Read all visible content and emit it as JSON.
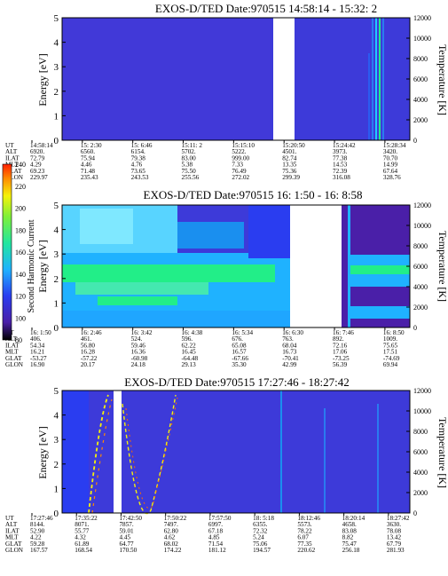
{
  "chart_data": [
    {
      "type": "heatmap",
      "title": "EXOS-D/TED  Date:970515  14:58:14 - 15:32: 2",
      "ylabel": "Energy [eV]",
      "y2label": "Temperature [K]",
      "ylim": [
        0,
        5
      ],
      "y2lim": [
        0,
        12000
      ],
      "yticks": [
        "0",
        "1",
        "2",
        "3",
        "4",
        "5"
      ],
      "y2ticks": [
        "0",
        "2000",
        "4000",
        "6000",
        "8000",
        "10000",
        "12000"
      ],
      "gap": [
        0.76,
        0.835
      ],
      "table": {
        "rows": [
          "UT",
          "ALT",
          "ILAT",
          "MLT",
          "GLAT",
          "GLON"
        ],
        "columns": [
          [
            "14:58:14",
            "6920.",
            "72.79",
            "4.29",
            "69.23",
            "229.97"
          ],
          [
            "15: 2:30",
            "6560.",
            "75.94",
            "4.46",
            "71.48",
            "235.43"
          ],
          [
            "15: 6:46",
            "6154.",
            "79.38",
            "4.76",
            "73.65",
            "243.53"
          ],
          [
            "15:11: 2",
            "5702.",
            "83.00",
            "5.38",
            "75.50",
            "255.56"
          ],
          [
            "15:15:10",
            "5222.",
            "999.00",
            "7.33",
            "76.49",
            "272.02"
          ],
          [
            "15:20:50",
            "4501.",
            "82.74",
            "13.35",
            "75.36",
            "299.39"
          ],
          [
            "15:24:42",
            "3973.",
            "77.38",
            "14.53",
            "72.39",
            "316.08"
          ],
          [
            "15:28:34",
            "3420.",
            "70.70",
            "14.99",
            "67.64",
            "328.76"
          ]
        ]
      }
    },
    {
      "type": "heatmap",
      "title": "EXOS-D/TED   Date:970515   16: 1:50 - 16: 8:58",
      "ylabel": "Energy [eV]",
      "y2label": "Temperature [K]",
      "ylim": [
        0,
        5
      ],
      "y2lim": [
        0,
        12000
      ],
      "yticks": [
        "0",
        "1",
        "2",
        "3",
        "4",
        "5"
      ],
      "y2ticks": [
        "0",
        "2000",
        "4000",
        "6000",
        "8000",
        "10000",
        "12000"
      ],
      "gap": [
        0.69,
        0.83
      ],
      "colorbar": {
        "label": "Second Harmonic Current",
        "range": [
          80,
          240
        ],
        "ticks": [
          "80",
          "100",
          "120",
          "140",
          "160",
          "180",
          "200",
          "220",
          "240"
        ]
      },
      "table": {
        "rows": [
          "UT",
          "ALT",
          "ILAT",
          "MLT",
          "GLAT",
          "GLON"
        ],
        "columns": [
          [
            "16: 1:50",
            "406.",
            "54.34",
            "16.21",
            "-53.27",
            "16.90"
          ],
          [
            "16: 2:46",
            "461.",
            "56.80",
            "16.28",
            "-57.22",
            "20.17"
          ],
          [
            "16: 3:42",
            "524.",
            "59.46",
            "16.36",
            "-60.98",
            "24.18"
          ],
          [
            "16: 4:38",
            "596.",
            "62.22",
            "16.45",
            "-64.48",
            "29.13"
          ],
          [
            "16: 5:34",
            "676.",
            "65.08",
            "16.57",
            "-67.66",
            "35.30"
          ],
          [
            "16: 6:30",
            "763.",
            "68.04",
            "16.73",
            "-70.41",
            "42.99"
          ],
          [
            "16: 7:46",
            "892.",
            "72.16",
            "17.06",
            "-73.25",
            "56.39"
          ],
          [
            "16: 8:50",
            "1009.",
            "75.65",
            "17.51",
            "-74.69",
            "69.94"
          ]
        ]
      }
    },
    {
      "type": "heatmap",
      "title": "EXOS-D/TED   Date:970515   17:27:46 - 18:27:42",
      "ylabel": "Energy [eV]",
      "y2label": "Temperature [K]",
      "ylim": [
        0,
        5
      ],
      "y2lim": [
        0,
        12000
      ],
      "yticks": [
        "0",
        "1",
        "2",
        "3",
        "4",
        "5"
      ],
      "y2ticks": [
        "0",
        "2000",
        "4000",
        "6000",
        "8000",
        "10000",
        "12000"
      ],
      "gap": [
        0.2,
        0.225
      ],
      "table": {
        "rows": [
          "UT",
          "ALT",
          "ILAT",
          "MLT",
          "GLAT",
          "GLON"
        ],
        "columns": [
          [
            "17:27:46",
            "8144.",
            "52.90",
            "4.22",
            "59.28",
            "167.57"
          ],
          [
            "17:35:22",
            "8071.",
            "55.77",
            "4.32",
            "61.89",
            "168.54"
          ],
          [
            "17:42:50",
            "7857.",
            "59.01",
            "4.45",
            "64.77",
            "170.50"
          ],
          [
            "17:50:22",
            "7497.",
            "62.80",
            "4.62",
            "68.02",
            "174.22"
          ],
          [
            "17:57:50",
            "6997.",
            "67.18",
            "4.85",
            "71.54",
            "181.12"
          ],
          [
            "18: 5:18",
            "6355.",
            "72.32",
            "5.24",
            "75.06",
            "194.57"
          ],
          [
            "18:12:46",
            "5573.",
            "78.22",
            "6.07",
            "77.35",
            "220.62"
          ],
          [
            "18:20:14",
            "4658.",
            "83.08",
            "8.82",
            "75.47",
            "256.18"
          ],
          [
            "18:27:42",
            "3630.",
            "78.08",
            "13.42",
            "67.79",
            "281.93"
          ]
        ]
      }
    }
  ],
  "colors": {
    "background": "#3d3ad9",
    "gap": "#ffffff",
    "high": "#21c8ff",
    "mid": "#22ee88",
    "low": "#7fe8ff"
  }
}
